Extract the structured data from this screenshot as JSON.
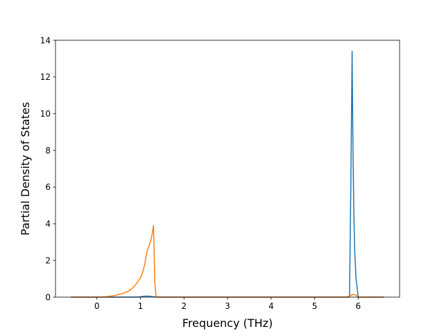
{
  "chart_data": {
    "type": "line",
    "title": "",
    "xlabel": "Frequency (THz)",
    "ylabel": "Partial Density of States",
    "xlim": [
      -0.95,
      6.95
    ],
    "ylim": [
      0,
      14
    ],
    "xticks": [
      0,
      1,
      2,
      3,
      4,
      5,
      6
    ],
    "yticks": [
      0,
      2,
      4,
      6,
      8,
      10,
      12,
      14
    ],
    "grid": false,
    "legend": "none",
    "series": [
      {
        "color": "#1f77b4",
        "x": [
          -0.6,
          0.9,
          1.0,
          1.1,
          1.2,
          1.3,
          1.4,
          5.8,
          5.83,
          5.86,
          5.88,
          5.9,
          5.92,
          5.95,
          6.0,
          6.05,
          6.6
        ],
        "y": [
          0,
          0,
          0.02,
          0.05,
          0.05,
          0.02,
          0,
          0,
          6.0,
          13.4,
          8.0,
          4.5,
          2.5,
          1.0,
          0,
          0,
          0
        ]
      },
      {
        "color": "#ff7f0e",
        "x": [
          -0.6,
          0.0,
          0.2,
          0.4,
          0.6,
          0.7,
          0.8,
          0.9,
          1.0,
          1.05,
          1.1,
          1.15,
          1.2,
          1.25,
          1.3,
          1.33,
          1.36,
          5.7,
          5.8,
          5.85,
          5.9,
          5.95,
          6.0,
          6.6
        ],
        "y": [
          0,
          0,
          0.02,
          0.08,
          0.2,
          0.3,
          0.45,
          0.7,
          1.05,
          1.35,
          1.8,
          2.5,
          2.8,
          3.2,
          3.9,
          0.8,
          0,
          0,
          0.05,
          0.12,
          0.15,
          0.1,
          0,
          0
        ]
      }
    ]
  }
}
